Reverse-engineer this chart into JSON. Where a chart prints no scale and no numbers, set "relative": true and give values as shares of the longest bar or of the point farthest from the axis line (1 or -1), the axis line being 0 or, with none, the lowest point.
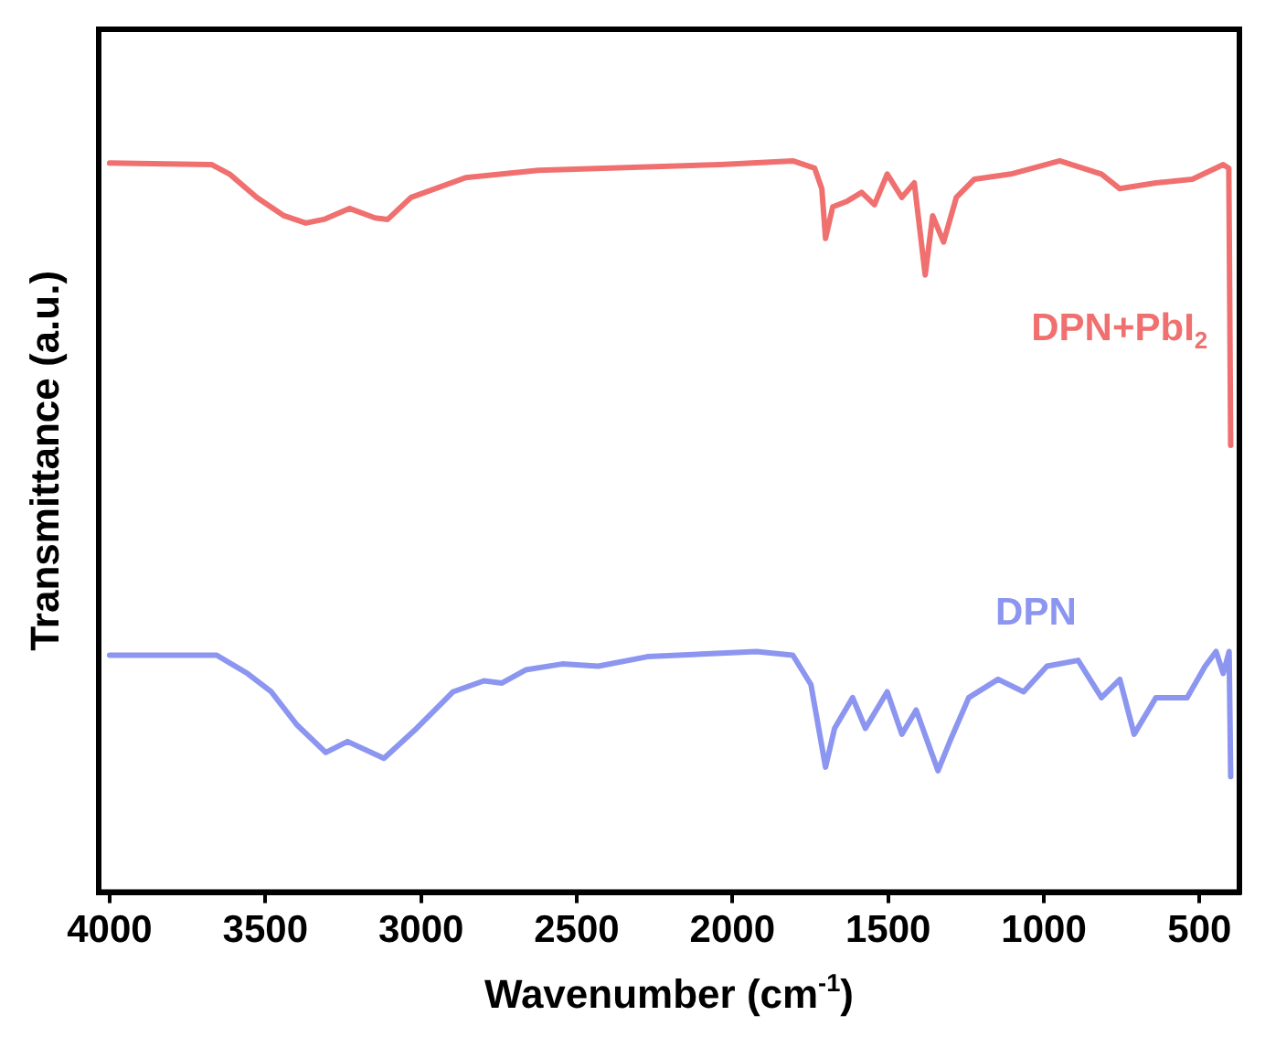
{
  "chart_data": {
    "type": "line",
    "relative": true,
    "xlabel": "Wavenumber (cm$^{-1}$)",
    "ylabel": "Transmittance (a.u.)",
    "xlim": [
      4035,
      372
    ],
    "xticks": [
      4000,
      3500,
      3000,
      2500,
      2000,
      1500,
      1000,
      500
    ],
    "grid": false,
    "legend": false,
    "marker": "none",
    "line_style": "solid",
    "series": [
      {
        "name": "DPN+PbI$_{2}$",
        "color": "#f07070",
        "x": [
          4000,
          3673,
          3615,
          3527,
          3440,
          3370,
          3312,
          3230,
          3148,
          3107,
          3032,
          2857,
          2623,
          2040,
          1806,
          1736,
          1713,
          1701,
          1678,
          1631,
          1585,
          1544,
          1503,
          1456,
          1416,
          1381,
          1357,
          1322,
          1281,
          1223,
          1106,
          949,
          815,
          756,
          640,
          523,
          424,
          406,
          400
        ],
        "values": [
          0.997,
          0.995,
          0.982,
          0.95,
          0.925,
          0.915,
          0.92,
          0.935,
          0.922,
          0.92,
          0.95,
          0.977,
          0.987,
          0.995,
          1.0,
          0.99,
          0.962,
          0.894,
          0.937,
          0.945,
          0.957,
          0.94,
          0.982,
          0.95,
          0.97,
          0.844,
          0.925,
          0.889,
          0.95,
          0.975,
          0.982,
          1.0,
          0.982,
          0.962,
          0.97,
          0.975,
          0.995,
          0.99,
          0.611
        ]
      },
      {
        "name": "DPN",
        "color": "#8c96f0",
        "x": [
          4000,
          3656,
          3557,
          3481,
          3399,
          3306,
          3236,
          3119,
          3014,
          2897,
          2798,
          2740,
          2664,
          2547,
          2431,
          2273,
          1923,
          1806,
          1748,
          1701,
          1672,
          1614,
          1573,
          1503,
          1456,
          1410,
          1340,
          1299,
          1241,
          1147,
          1065,
          990,
          890,
          815,
          756,
          710,
          640,
          540,
          482,
          447,
          424,
          405,
          400
        ],
        "values": [
          0.324,
          0.324,
          0.299,
          0.274,
          0.229,
          0.191,
          0.206,
          0.183,
          0.224,
          0.274,
          0.289,
          0.286,
          0.304,
          0.312,
          0.309,
          0.322,
          0.329,
          0.324,
          0.284,
          0.171,
          0.224,
          0.266,
          0.224,
          0.274,
          0.216,
          0.249,
          0.166,
          0.209,
          0.266,
          0.291,
          0.274,
          0.309,
          0.317,
          0.266,
          0.291,
          0.216,
          0.266,
          0.266,
          0.309,
          0.329,
          0.299,
          0.329,
          0.158
        ]
      }
    ]
  }
}
